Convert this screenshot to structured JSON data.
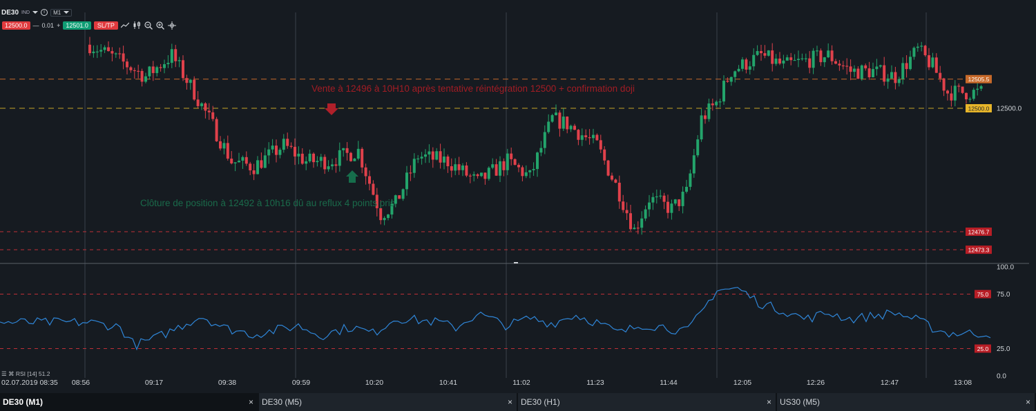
{
  "toolbar": {
    "symbol": "DE30",
    "symbol_type": "IND",
    "timeframe": "M1",
    "sell_price": "12500.0",
    "buy_price": "12501.0",
    "quantity": "0.01",
    "minus": "—",
    "plus": "+",
    "sltp": "SL/TP",
    "tools": [
      "line-chart-icon",
      "candle-chart-icon",
      "zoom-out-icon",
      "zoom-in-icon",
      "crosshair-icon"
    ]
  },
  "annotations": {
    "sell_note": "Vente à 12496 à 10H10 après tentative réintégration 12500 + confirmation doji",
    "close_note": "Clôture de position à 12492 à 10h16 dû au reflux 4 points pris"
  },
  "price_labels": {
    "upper_dashed": "12505.5",
    "level_12500_tag": "12500.0",
    "level_12500_text": "12500.0",
    "low_1": "12476.7",
    "low_2": "12473.3"
  },
  "rsi": {
    "label": "RSI [14] 51.2",
    "axis": [
      "100.0",
      "75.0",
      "25.0",
      "0.0"
    ],
    "tag_75": "75.0",
    "tag_25": "25.0"
  },
  "time_axis": [
    "02.07.2019 08:35",
    "08:56",
    "09:17",
    "09:38",
    "09:59",
    "10:20",
    "10:41",
    "11:02",
    "11:23",
    "11:44",
    "12:05",
    "12:26",
    "12:47",
    "13:08"
  ],
  "tabs": [
    {
      "label": "DE30 (M1)",
      "close": "×",
      "active": true
    },
    {
      "label": "DE30 (M5)",
      "close": "×",
      "active": false
    },
    {
      "label": "DE30 (H1)",
      "close": "×",
      "active": false
    },
    {
      "label": "US30 (M5)",
      "close": "×",
      "active": false
    }
  ],
  "colors": {
    "background": "#161b21",
    "bull": "#23a46b",
    "bear": "#e0414b",
    "rsi_line": "#2f86d8",
    "level_orange": "#c86a2a",
    "level_yellow": "#c8a428",
    "level_red": "#c03038",
    "note_red": "#a21c24",
    "note_green": "#1a6a4a"
  },
  "chart_data": {
    "type": "candlestick",
    "price_levels": [
      12505.5,
      12500.0,
      12476.7,
      12473.3
    ],
    "rsi_levels": [
      75,
      25
    ],
    "rsi_last": 51.2,
    "waypoints": [
      [
        0,
        12512
      ],
      [
        8,
        12509
      ],
      [
        15,
        12506
      ],
      [
        22,
        12510
      ],
      [
        28,
        12503
      ],
      [
        32,
        12498
      ],
      [
        38,
        12490
      ],
      [
        44,
        12489
      ],
      [
        52,
        12493
      ],
      [
        58,
        12490
      ],
      [
        64,
        12490
      ],
      [
        72,
        12492
      ],
      [
        78,
        12480
      ],
      [
        82,
        12482
      ],
      [
        88,
        12491
      ],
      [
        96,
        12490
      ],
      [
        104,
        12486
      ],
      [
        112,
        12490
      ],
      [
        118,
        12487
      ],
      [
        124,
        12498
      ],
      [
        128,
        12497
      ],
      [
        136,
        12493
      ],
      [
        142,
        12484
      ],
      [
        146,
        12477
      ],
      [
        150,
        12483
      ],
      [
        156,
        12481
      ],
      [
        160,
        12484
      ],
      [
        164,
        12498
      ],
      [
        168,
        12501
      ],
      [
        172,
        12507
      ],
      [
        180,
        12510
      ],
      [
        186,
        12508
      ],
      [
        192,
        12509
      ],
      [
        198,
        12510
      ],
      [
        204,
        12507
      ],
      [
        210,
        12507
      ],
      [
        216,
        12506
      ],
      [
        222,
        12511
      ],
      [
        226,
        12508
      ],
      [
        230,
        12503
      ]
    ],
    "rsi_waypoints": [
      [
        0,
        49
      ],
      [
        8,
        45
      ],
      [
        12,
        28
      ],
      [
        18,
        35
      ],
      [
        24,
        45
      ],
      [
        30,
        55
      ],
      [
        36,
        44
      ],
      [
        44,
        38
      ],
      [
        50,
        42
      ],
      [
        56,
        46
      ],
      [
        62,
        37
      ],
      [
        70,
        45
      ],
      [
        76,
        39
      ],
      [
        82,
        53
      ],
      [
        88,
        51
      ],
      [
        94,
        49
      ],
      [
        98,
        44
      ],
      [
        104,
        57
      ],
      [
        112,
        46
      ],
      [
        118,
        53
      ],
      [
        124,
        48
      ],
      [
        130,
        56
      ],
      [
        136,
        49
      ],
      [
        142,
        39
      ],
      [
        148,
        47
      ],
      [
        154,
        45
      ],
      [
        160,
        40
      ],
      [
        164,
        58
      ],
      [
        168,
        79
      ],
      [
        174,
        80
      ],
      [
        180,
        66
      ],
      [
        186,
        60
      ],
      [
        192,
        52
      ],
      [
        198,
        58
      ],
      [
        204,
        52
      ],
      [
        210,
        55
      ],
      [
        216,
        58
      ],
      [
        222,
        51
      ],
      [
        226,
        44
      ],
      [
        230,
        39
      ]
    ]
  }
}
